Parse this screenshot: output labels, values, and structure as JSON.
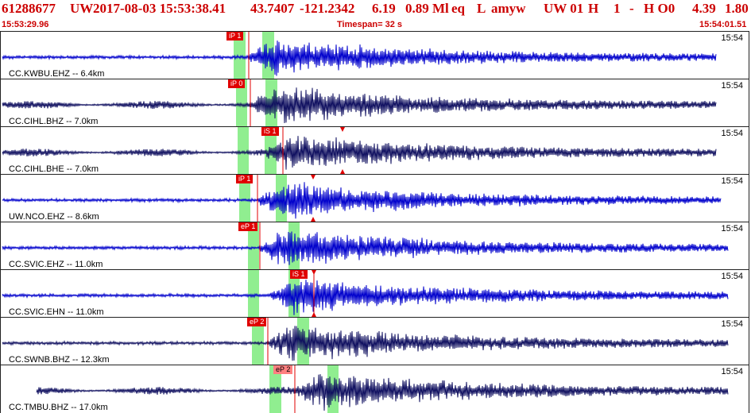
{
  "header": {
    "event_id": "61288677",
    "network": "UW",
    "datetime": "2017-08-03 15:53:38.41",
    "lat": "43.7407",
    "lon": "-121.2342",
    "depth": "6.19",
    "magnitude": "0.89 Ml",
    "etype": "eq",
    "flag": "L",
    "author": "amyw",
    "source": "UW 01",
    "quality1": "H",
    "quality2": "1",
    "dash": "-",
    "quality3": "H O0",
    "val1": "4.39",
    "val2": "1.80"
  },
  "subheader": {
    "start_time": "15:53:29.96",
    "timespan": "Timespan=  32 s",
    "end_time": "15:54:01.51"
  },
  "colors": {
    "header_text": "#cc0000",
    "trace_blue": "#0000cc",
    "trace_navy": "#101060",
    "pick_red": "#e00000",
    "window_green": "#90ee90"
  },
  "traces": [
    {
      "label": "CC.KWBU.EHZ -- 6.4km",
      "time": "15:54",
      "pick": "iP 1",
      "color": "blue",
      "pick_light": false
    },
    {
      "label": "CC.CIHL.BHZ -- 7.0km",
      "time": "15:54",
      "pick": "iP 0",
      "color": "navy",
      "pick_light": false
    },
    {
      "label": "CC.CIHL.BHE -- 7.0km",
      "time": "15:54",
      "pick": "iS 1",
      "color": "navy",
      "pick_light": false
    },
    {
      "label": "UW.NCO.EHZ -- 8.6km",
      "time": "15:54",
      "pick": "iP 1",
      "color": "blue",
      "pick_light": false
    },
    {
      "label": "CC.SVIC.EHZ -- 11.0km",
      "time": "15:54",
      "pick": "eP 1",
      "color": "blue",
      "pick_light": false
    },
    {
      "label": "CC.SVIC.EHN -- 11.0km",
      "time": "15:54",
      "pick": "iS 1",
      "color": "blue",
      "pick_light": false
    },
    {
      "label": "CC.SWNB.BHZ -- 12.3km",
      "time": "15:54",
      "pick": "eP 2",
      "color": "navy",
      "pick_light": false
    },
    {
      "label": "CC.TMBU.BHZ -- 17.0km",
      "time": "15:54",
      "pick": "eP 2",
      "color": "navy",
      "pick_light": true
    }
  ]
}
